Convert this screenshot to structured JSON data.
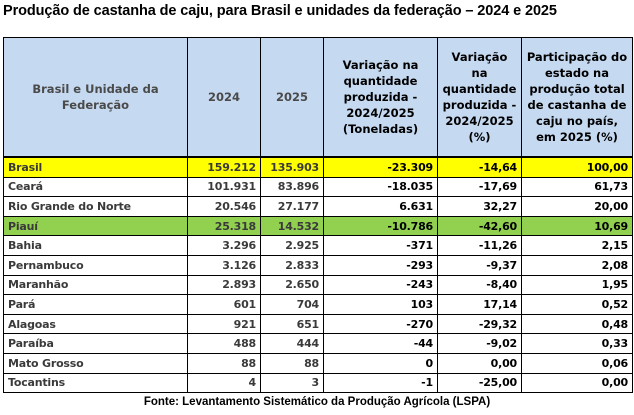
{
  "title": "Produção de castanha de caju, para Brasil e unidades da federação – 2024 e 2025",
  "colors": {
    "header_bg": "#c5d9f1",
    "brasil_highlight": "#ffff00",
    "piaui_highlight": "#92d050"
  },
  "table": {
    "headers": [
      "Brasil e Unidade da Federação",
      "2024",
      "2025",
      "Variação na quantidade produzida - 2024/2025 (Toneladas)",
      "Variação na quantidade produzida - 2024/2025 (%)",
      "Participação do estado na produção total de castanha de caju no país, em 2025 (%)"
    ],
    "rows": [
      [
        "Brasil",
        "159.212",
        "135.903",
        "-23.309",
        "-14,64",
        "100,00"
      ],
      [
        "Ceará",
        "101.931",
        "83.896",
        "-18.035",
        "-17,69",
        "61,73"
      ],
      [
        "Rio Grande do Norte",
        "20.546",
        "27.177",
        "6.631",
        "32,27",
        "20,00"
      ],
      [
        "Piauí",
        "25.318",
        "14.532",
        "-10.786",
        "-42,60",
        "10,69"
      ],
      [
        "Bahia",
        "3.296",
        "2.925",
        "-371",
        "-11,26",
        "2,15"
      ],
      [
        "Pernambuco",
        "3.126",
        "2.833",
        "-293",
        "-9,37",
        "2,08"
      ],
      [
        "Maranhão",
        "2.893",
        "2.650",
        "-243",
        "-8,40",
        "1,95"
      ],
      [
        "Pará",
        "601",
        "704",
        "103",
        "17,14",
        "0,52"
      ],
      [
        "Alagoas",
        "921",
        "651",
        "-270",
        "-29,32",
        "0,48"
      ],
      [
        "Paraíba",
        "488",
        "444",
        "-44",
        "-9,02",
        "0,33"
      ],
      [
        "Mato Grosso",
        "88",
        "88",
        "0",
        "0,00",
        "0,06"
      ],
      [
        "Tocantins",
        "4",
        "3",
        "-1",
        "-25,00",
        "0,00"
      ]
    ]
  },
  "source": "Fonte: Levantamento Sistemático da Produção Agrícola (LSPA)"
}
